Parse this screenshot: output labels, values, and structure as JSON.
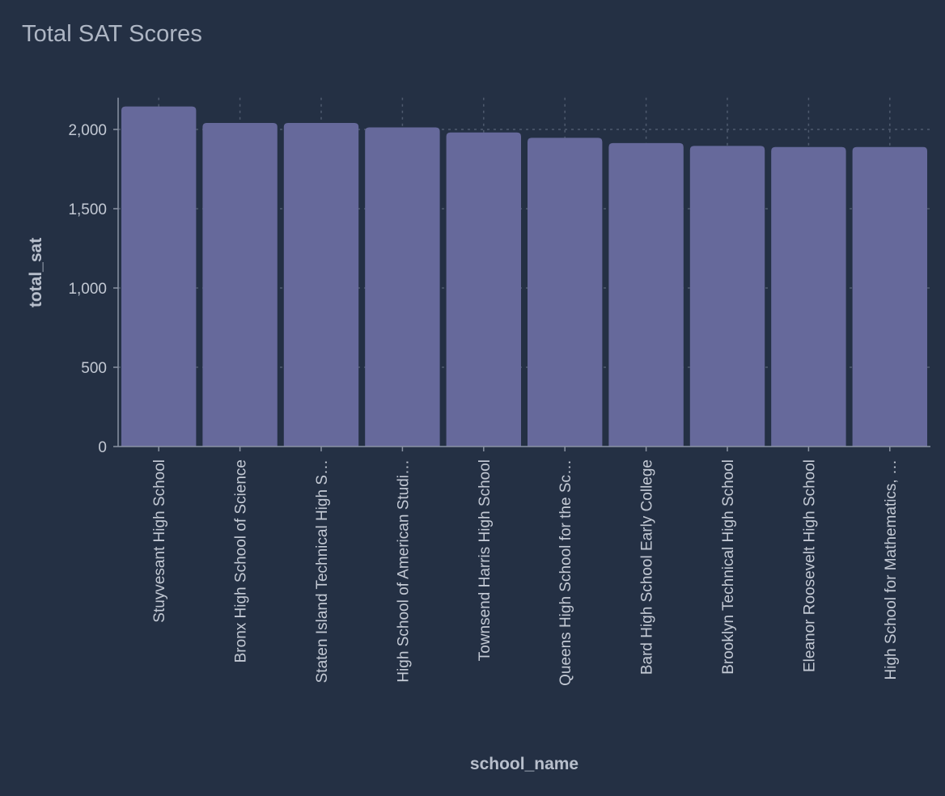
{
  "chart_title": "Total SAT Scores",
  "colors": {
    "background": "#243044",
    "bar": "#66699b",
    "axis": "#8a92a3",
    "grid": "#4f5a6e",
    "text": "#c3c9d4"
  },
  "chart_data": {
    "type": "bar",
    "title": "Total SAT Scores",
    "xlabel": "school_name",
    "ylabel": "total_sat",
    "ylim": [
      0,
      2200
    ],
    "yticks": [
      0,
      500,
      1000,
      1500,
      2000
    ],
    "ytick_labels": [
      "0",
      "500",
      "1,000",
      "1,500",
      "2,000"
    ],
    "grid": true,
    "categories": [
      "Stuyvesant High School",
      "Bronx High School of Science",
      "Staten Island Technical High S…",
      "High School of American Studi…",
      "Townsend Harris High School",
      "Queens High School for the Sc…",
      "Bard High School Early College",
      "Brooklyn Technical High School",
      "Eleanor Roosevelt High School",
      "High School for Mathematics, …"
    ],
    "values": [
      2145,
      2041,
      2041,
      2013,
      1981,
      1947,
      1914,
      1896,
      1889,
      1889
    ]
  }
}
